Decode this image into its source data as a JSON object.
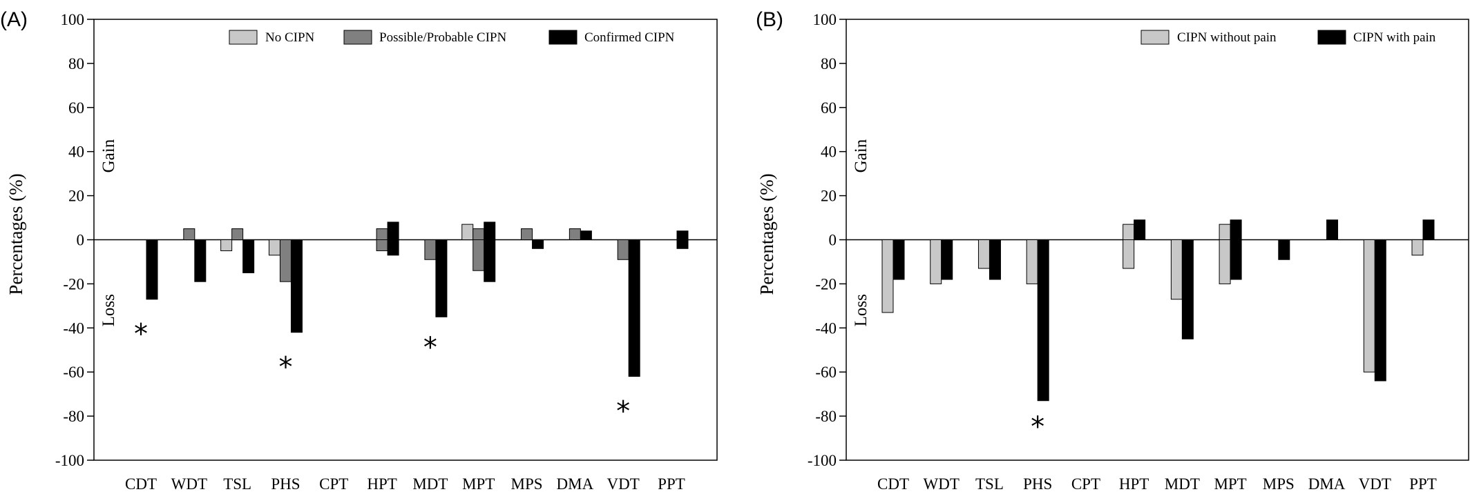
{
  "chart_data": [
    {
      "panel_label": "(A)",
      "type": "bar",
      "ylabel": "Percentages (%)",
      "ylim": [
        -100,
        100
      ],
      "yticks": [
        -100,
        -80,
        -60,
        -40,
        -20,
        0,
        20,
        40,
        60,
        80,
        100
      ],
      "gain_label": "Gain",
      "loss_label": "Loss",
      "legend_position": "top-right",
      "categories": [
        "CDT",
        "WDT",
        "TSL",
        "PHS",
        "CPT",
        "HPT",
        "MDT",
        "MPT",
        "MPS",
        "DMA",
        "VDT",
        "PPT"
      ],
      "series": [
        {
          "name": "No CIPN",
          "color": "#c8c8c8",
          "gain": [
            0,
            0,
            0,
            0,
            0,
            0,
            0,
            7,
            0,
            0,
            0,
            0
          ],
          "loss": [
            0,
            0,
            -5,
            -7,
            0,
            0,
            0,
            0,
            0,
            0,
            0,
            0
          ]
        },
        {
          "name": "Possible/Probable CIPN",
          "color": "#808080",
          "gain": [
            0,
            5,
            5,
            0,
            0,
            5,
            0,
            5,
            5,
            5,
            0,
            0
          ],
          "loss": [
            0,
            0,
            0,
            -19,
            0,
            -5,
            -9,
            -14,
            0,
            0,
            -9,
            0
          ]
        },
        {
          "name": "Confirmed CIPN",
          "color": "#000000",
          "gain": [
            0,
            0,
            0,
            0,
            0,
            8,
            0,
            8,
            0,
            4,
            0,
            4
          ],
          "loss": [
            -27,
            -19,
            -15,
            -42,
            0,
            -7,
            -35,
            -19,
            -4,
            0,
            -62,
            -4
          ]
        }
      ],
      "significance_marks": [
        {
          "category": "CDT",
          "symbol": "*",
          "y": -42
        },
        {
          "category": "PHS",
          "symbol": "*",
          "y": -57
        },
        {
          "category": "MDT",
          "symbol": "*",
          "y": -48
        },
        {
          "category": "VDT",
          "symbol": "*",
          "y": -77
        }
      ]
    },
    {
      "panel_label": "(B)",
      "type": "bar",
      "ylabel": "Percentages (%)",
      "ylim": [
        -100,
        100
      ],
      "yticks": [
        -100,
        -80,
        -60,
        -40,
        -20,
        0,
        20,
        40,
        60,
        80,
        100
      ],
      "gain_label": "Gain",
      "loss_label": "Loss",
      "legend_position": "top-right",
      "categories": [
        "CDT",
        "WDT",
        "TSL",
        "PHS",
        "CPT",
        "HPT",
        "MDT",
        "MPT",
        "MPS",
        "DMA",
        "VDT",
        "PPT"
      ],
      "series": [
        {
          "name": "CIPN without pain",
          "color": "#c8c8c8",
          "gain": [
            0,
            0,
            0,
            0,
            0,
            7,
            0,
            7,
            0,
            0,
            0,
            0
          ],
          "loss": [
            -33,
            -20,
            -13,
            -20,
            0,
            -13,
            -27,
            -20,
            0,
            0,
            -60,
            -7
          ]
        },
        {
          "name": "CIPN with pain",
          "color": "#000000",
          "gain": [
            0,
            0,
            0,
            0,
            0,
            9,
            0,
            9,
            0,
            9,
            0,
            9
          ],
          "loss": [
            -18,
            -18,
            -18,
            -73,
            0,
            0,
            -45,
            -18,
            -9,
            0,
            -64,
            0
          ]
        }
      ],
      "significance_marks": [
        {
          "category": "PHS",
          "symbol": "*",
          "y": -84
        }
      ]
    }
  ]
}
